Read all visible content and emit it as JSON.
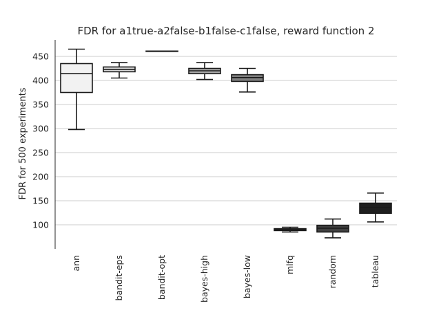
{
  "chart_data": {
    "type": "box",
    "title": "FDR for a1true-a2false-b1false-c1false, reward function 2",
    "xlabel": "",
    "ylabel": "FDR for 500 experiments",
    "ylim": [
      50,
      485
    ],
    "yticks": [
      100,
      150,
      200,
      250,
      300,
      350,
      400,
      450
    ],
    "grid": "horizontal",
    "categories": [
      "ann",
      "bandit-eps",
      "bandit-opt",
      "bayes-high",
      "bayes-low",
      "mlfq",
      "random",
      "tableau"
    ],
    "boxes": [
      {
        "min": 298,
        "q1": 375,
        "median": 414,
        "q3": 435,
        "max": 465,
        "color": "#f2f2f2"
      },
      {
        "min": 405,
        "q1": 418,
        "median": 423,
        "q3": 428,
        "max": 437,
        "color": "#d9d9d9"
      },
      {
        "min": 461,
        "q1": 461,
        "median": 461,
        "q3": 461,
        "max": 461,
        "color": "#bdbdbd"
      },
      {
        "min": 402,
        "q1": 414,
        "median": 420,
        "q3": 425,
        "max": 437,
        "color": "#a8a8a8"
      },
      {
        "min": 376,
        "q1": 398,
        "median": 406,
        "q3": 412,
        "max": 425,
        "color": "#7f7f7f"
      },
      {
        "min": 85,
        "q1": 88,
        "median": 90,
        "q3": 92,
        "max": 95,
        "color": "#5c5c5c"
      },
      {
        "min": 73,
        "q1": 85,
        "median": 93,
        "q3": 99,
        "max": 112,
        "color": "#404040"
      },
      {
        "min": 106,
        "q1": 124,
        "median": 136,
        "q3": 145,
        "max": 166,
        "color": "#1f1f1f"
      }
    ]
  }
}
